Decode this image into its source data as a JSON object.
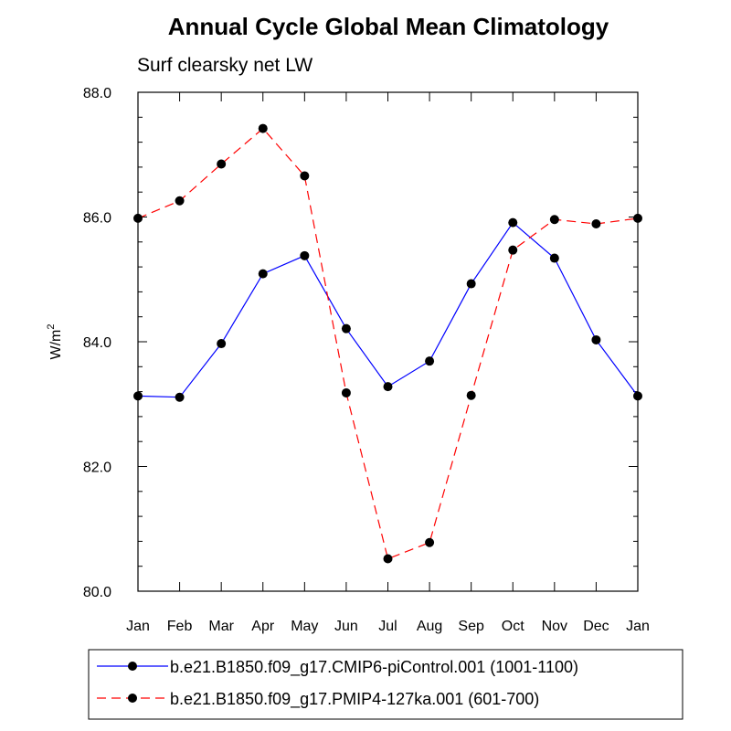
{
  "chart_data": {
    "type": "line",
    "title": "Annual Cycle Global Mean Climatology",
    "subtitle": "Surf clearsky net LW",
    "ylabel": "W/m",
    "ylabel_superscript": "2",
    "categories": [
      "Jan",
      "Feb",
      "Mar",
      "Apr",
      "May",
      "Jun",
      "Jul",
      "Aug",
      "Sep",
      "Oct",
      "Nov",
      "Dec",
      "Jan"
    ],
    "ylim": [
      80.0,
      88.0
    ],
    "yticks": [
      "80.0",
      "82.0",
      "84.0",
      "86.0",
      "88.0"
    ],
    "series": [
      {
        "name": "b.e21.B1850.f09_g17.CMIP6-piControl.001 (1001-1100)",
        "color": "#0000ff",
        "dash": "solid",
        "values": [
          83.13,
          83.11,
          83.97,
          85.09,
          85.38,
          84.21,
          83.28,
          83.69,
          84.93,
          85.91,
          85.34,
          84.03,
          83.13
        ]
      },
      {
        "name": "b.e21.B1850.f09_g17.PMIP4-127ka.001 (601-700)",
        "color": "#ff0000",
        "dash": "dashed",
        "values": [
          85.98,
          86.26,
          86.85,
          87.42,
          86.66,
          83.18,
          80.52,
          80.78,
          83.14,
          85.47,
          85.96,
          85.89,
          85.98
        ]
      }
    ],
    "grid": false,
    "legend_position": "bottom"
  }
}
